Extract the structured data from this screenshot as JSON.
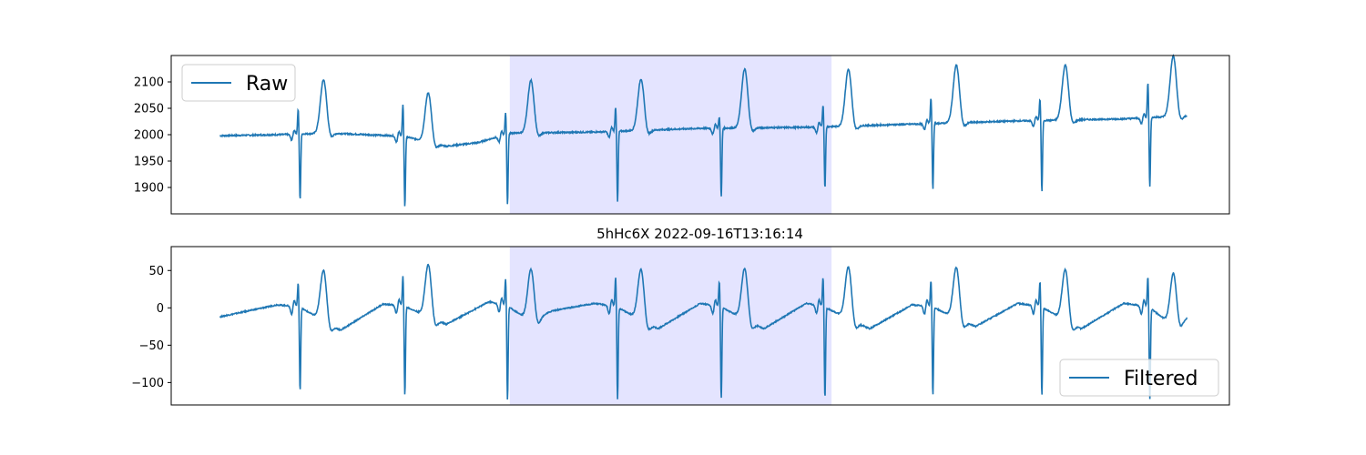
{
  "colors": {
    "line": "#1f77b4",
    "highlight": "#e4e4ff",
    "axes": "#000000",
    "legend_border": "#cccccc"
  },
  "chart_data": [
    {
      "type": "line",
      "series": [
        {
          "name": "Raw"
        }
      ],
      "legend": {
        "label": "Raw",
        "placement": "top-left"
      },
      "xlim": [
        0,
        10
      ],
      "ylim": [
        1850,
        2150
      ],
      "yticks": [
        1900,
        1950,
        2000,
        2050,
        2100
      ],
      "ytick_labels": [
        "1900",
        "1950",
        "2000",
        "2050",
        "2100"
      ],
      "highlight_span": [
        3.2,
        6.24
      ],
      "signal": {
        "t_start": 0.46,
        "t_end": 9.6,
        "beats": [
          1.2,
          2.19,
          3.16,
          4.2,
          5.18,
          6.16,
          7.18,
          8.21,
          9.23
        ],
        "baseline": [
          [
            0.46,
            1998
          ],
          [
            1.0,
            2000
          ],
          [
            1.5,
            2003
          ],
          [
            2.2,
            1997
          ],
          [
            2.6,
            1978
          ],
          [
            2.9,
            1985
          ],
          [
            3.2,
            2003
          ],
          [
            4.0,
            2005
          ],
          [
            5.0,
            2012
          ],
          [
            6.0,
            2014
          ],
          [
            7.0,
            2020
          ],
          [
            8.0,
            2026
          ],
          [
            9.0,
            2030
          ],
          [
            9.6,
            2036
          ]
        ],
        "r_peak_offsets": [
          48,
          60,
          42,
          47,
          22,
          42,
          49,
          42,
          68
        ],
        "s_trough_values": [
          1875,
          1863,
          1866,
          1872,
          1881,
          1899,
          1896,
          1891,
          1900
        ],
        "t_wave_offsets": [
          102,
          94,
          100,
          98,
          112,
          108,
          110,
          105,
          115
        ],
        "noise": 2.5
      }
    },
    {
      "type": "line",
      "title": "5hHc6X 2022-09-16T13:16:14",
      "series": [
        {
          "name": "Filtered"
        }
      ],
      "legend": {
        "label": "Filtered",
        "placement": "bottom-right"
      },
      "xlim": [
        0,
        10
      ],
      "ylim": [
        -130,
        82
      ],
      "yticks": [
        -100,
        -50,
        0,
        50
      ],
      "ytick_labels": [
        "−100",
        "−50",
        "0",
        "50"
      ],
      "highlight_span": [
        3.2,
        6.24
      ],
      "signal": {
        "t_start": 0.46,
        "t_end": 9.6,
        "beats": [
          1.2,
          2.19,
          3.16,
          4.2,
          5.18,
          6.16,
          7.18,
          8.21,
          9.23
        ],
        "baseline": [
          [
            0.46,
            -12
          ],
          [
            1.0,
            4
          ],
          [
            1.2,
            2
          ],
          [
            1.6,
            -30
          ],
          [
            2.0,
            5
          ],
          [
            2.19,
            3
          ],
          [
            2.6,
            -22
          ],
          [
            3.0,
            8
          ],
          [
            3.16,
            4
          ],
          [
            3.4,
            -18
          ],
          [
            3.6,
            -4
          ],
          [
            4.0,
            6
          ],
          [
            4.2,
            2
          ],
          [
            4.6,
            -28
          ],
          [
            5.0,
            6
          ],
          [
            5.18,
            2
          ],
          [
            5.6,
            -28
          ],
          [
            6.0,
            6
          ],
          [
            6.16,
            2
          ],
          [
            6.6,
            -28
          ],
          [
            7.0,
            4
          ],
          [
            7.18,
            2
          ],
          [
            7.6,
            -25
          ],
          [
            8.0,
            6
          ],
          [
            8.21,
            2
          ],
          [
            8.6,
            -28
          ],
          [
            9.0,
            6
          ],
          [
            9.23,
            2
          ],
          [
            9.45,
            -22
          ],
          [
            9.6,
            -14
          ]
        ],
        "r_peak_offsets": [
          32,
          40,
          36,
          40,
          34,
          40,
          36,
          34,
          40
        ],
        "s_trough_values": [
          -110,
          -116,
          -122,
          -122,
          -121,
          -120,
          -117,
          -116,
          -121
        ],
        "t_wave_offsets": [
          68,
          70,
          70,
          68,
          68,
          70,
          68,
          68,
          68
        ],
        "noise": 1.5
      }
    }
  ]
}
